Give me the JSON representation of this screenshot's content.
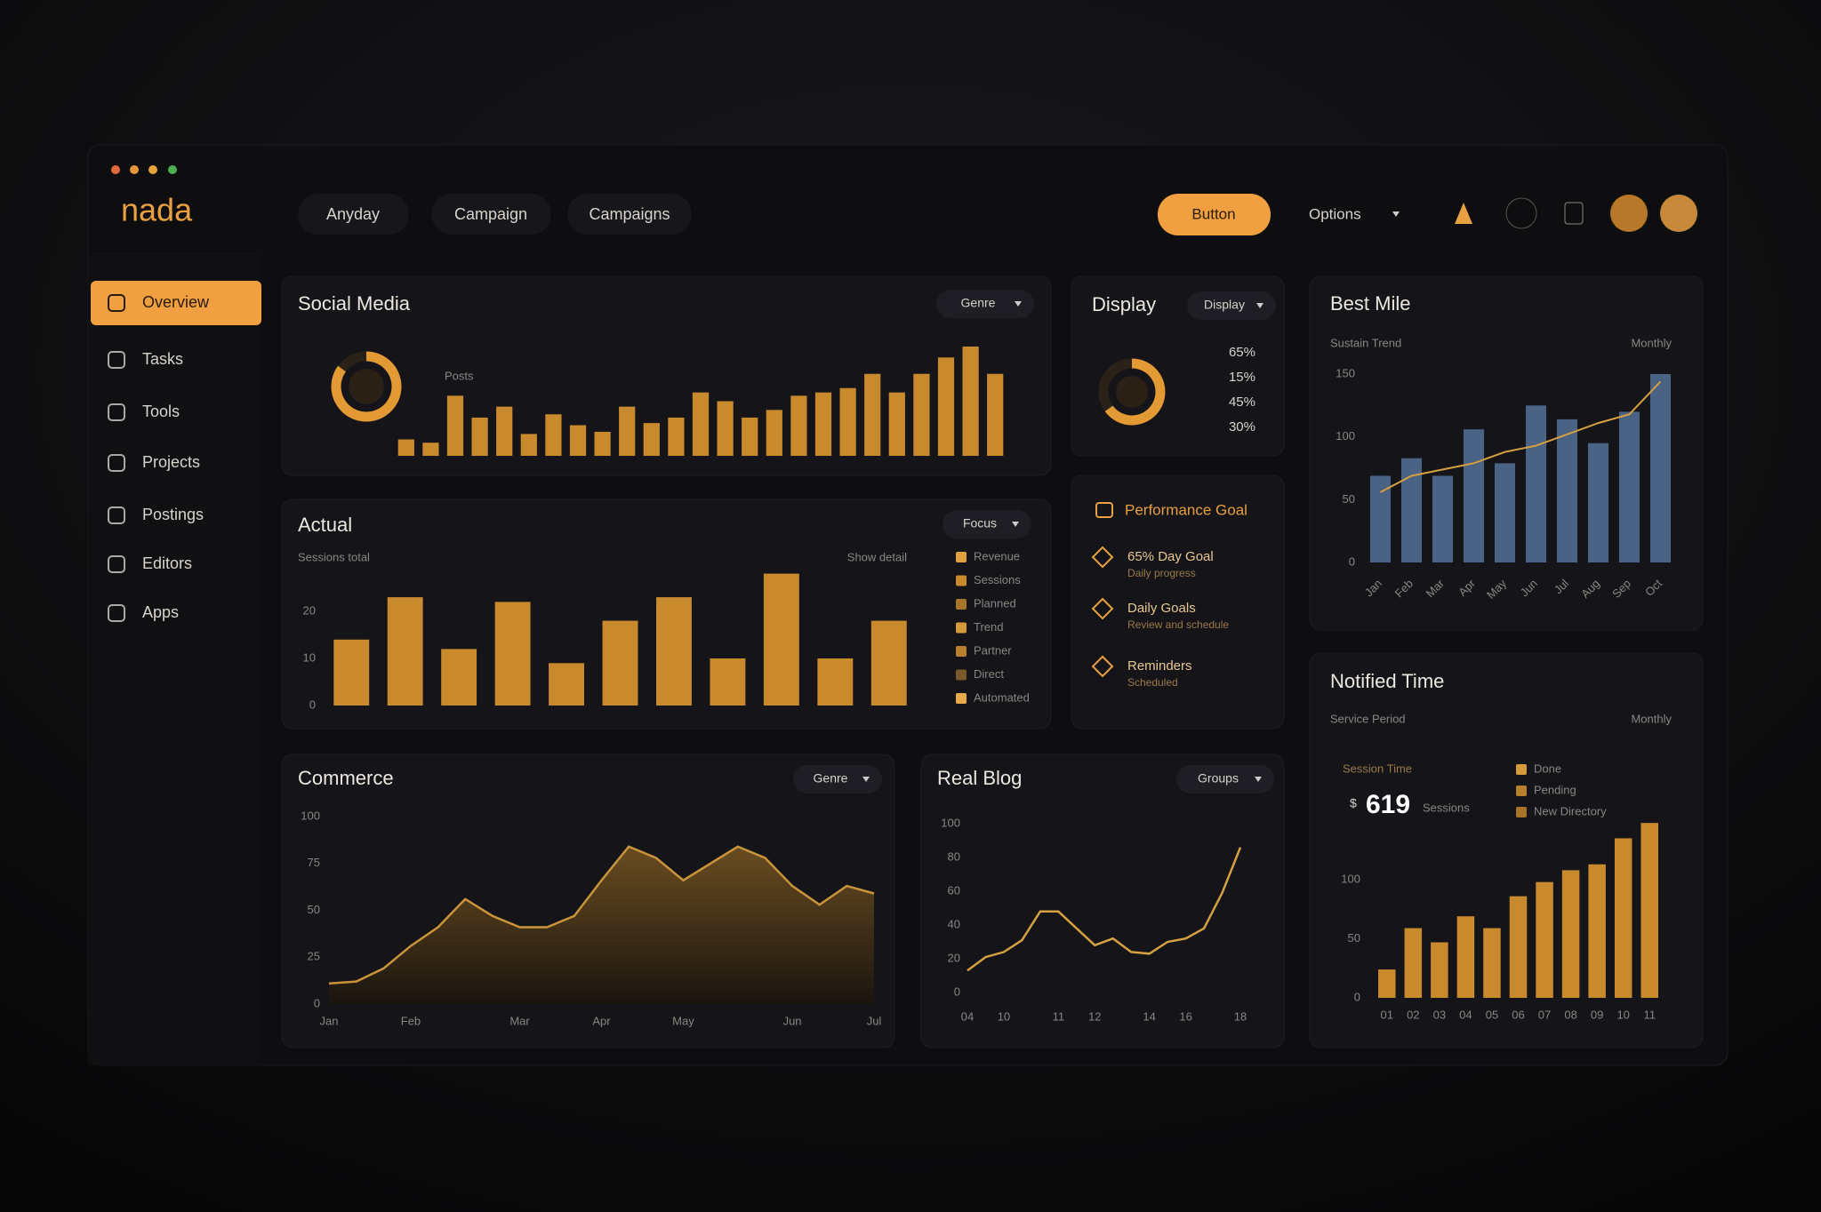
{
  "header": {
    "logo": "nada",
    "nav": [
      "Anyday",
      "Campaign",
      "Campaigns"
    ],
    "button": "Button",
    "dropdown": "Options"
  },
  "sidebar": {
    "items": [
      "Overview",
      "Tasks",
      "Tools",
      "Projects",
      "Postings",
      "Editors",
      "Apps"
    ]
  },
  "goals": {
    "title": "Performance Goal",
    "items": [
      {
        "title": "65% Day Goal",
        "subtitle": "Daily progress"
      },
      {
        "title": "Daily Goals",
        "subtitle": "Review and schedule"
      },
      {
        "title": "Reminders",
        "subtitle": "Scheduled"
      }
    ]
  },
  "chart_data": [
    {
      "type": "bar",
      "title": "Social Media",
      "button": "Genre",
      "label": "Posts",
      "progress": 85,
      "color": "#c98a2e",
      "ylim": [
        0,
        100
      ],
      "values": [
        15,
        12,
        55,
        35,
        45,
        20,
        38,
        28,
        22,
        45,
        30,
        35,
        58,
        50,
        35,
        42,
        55,
        58,
        62,
        75,
        58,
        75,
        90,
        100,
        75
      ]
    },
    {
      "type": "donut",
      "title": "Display",
      "button": "Display",
      "value": 65,
      "color": "#e39a35",
      "labels": [
        "65%",
        "15%",
        "45%",
        "30%"
      ]
    },
    {
      "type": "bar_line",
      "title": "Best Mile",
      "subtitle": "Sustain Trend",
      "dropdown": "Monthly",
      "ylim": [
        0,
        150
      ],
      "yticks": [
        0,
        50,
        100,
        150
      ],
      "categories": [
        "Jan",
        "Feb",
        "Mar",
        "Apr",
        "May",
        "Jun",
        "Jul",
        "Aug",
        "Sep",
        "Oct"
      ],
      "series": [
        {
          "color": "#4a6284",
          "values": [
            69,
            83,
            69,
            106,
            79,
            125,
            114,
            95,
            120,
            150
          ]
        },
        {
          "color": "#d4a040",
          "values": [
            56,
            69,
            74,
            79,
            88,
            93,
            102,
            111,
            118,
            144
          ]
        }
      ]
    },
    {
      "type": "bar",
      "title": "Actual",
      "button": "Focus",
      "subtitle": "Sessions total",
      "note": "Show detail",
      "color": "#c98a2e",
      "ylim": [
        0,
        30
      ],
      "yticks": [
        0,
        10,
        20
      ],
      "values": [
        14,
        23,
        12,
        22,
        9,
        18,
        23,
        10,
        28,
        10,
        18
      ],
      "legend": [
        {
          "name": "Revenue",
          "color": "#e0a040"
        },
        {
          "name": "Sessions",
          "color": "#c98a2e"
        },
        {
          "name": "Planned",
          "color": "#a87428"
        },
        {
          "name": "Trend",
          "color": "#d49a3a"
        },
        {
          "name": "Partner",
          "color": "#b8802c"
        },
        {
          "name": "Direct",
          "color": "#7a5a2a"
        },
        {
          "name": "Automated",
          "color": "#e8aa48"
        }
      ]
    },
    {
      "type": "bar",
      "title": "Notified Time",
      "subtitle": "Service Period",
      "dropdown": "Monthly",
      "stat_label": "Session Time",
      "stat_prefix": "$",
      "stat_value": 619,
      "stat_unit": "Sessions",
      "color": "#c98a2e",
      "ylim": [
        0,
        200
      ],
      "yticks": [
        0,
        50,
        100
      ],
      "categories": [
        "01",
        "02",
        "03",
        "04",
        "05",
        "06",
        "07",
        "08",
        "09",
        "10",
        "11"
      ],
      "values": [
        24,
        59,
        47,
        69,
        59,
        86,
        98,
        108,
        113,
        135,
        148
      ],
      "legend": [
        {
          "name": "Done",
          "color": "#d49a3a"
        },
        {
          "name": "Pending",
          "color": "#b8802c"
        },
        {
          "name": "New Directory",
          "color": "#a87428"
        }
      ]
    },
    {
      "type": "area",
      "title": "Commerce",
      "button": "Genre",
      "color": "#c9943a",
      "ylim": [
        0,
        100
      ],
      "yticks": [
        0,
        25,
        50,
        75,
        100
      ],
      "categories": [
        "Jan",
        null,
        null,
        "Feb",
        null,
        null,
        null,
        "Mar",
        null,
        null,
        "Apr",
        null,
        null,
        "May",
        null,
        null,
        null,
        "Jun",
        null,
        null,
        "Jul"
      ],
      "values": [
        11,
        12,
        19,
        31,
        41,
        56,
        47,
        41,
        41,
        47,
        66,
        84,
        78,
        66,
        75,
        84,
        78,
        63,
        53,
        63,
        59
      ]
    },
    {
      "type": "line",
      "title": "Real Blog",
      "button": "Groups",
      "color": "#d4a040",
      "ylim": [
        0,
        100
      ],
      "yticks": [
        0,
        20,
        40,
        60,
        80,
        100
      ],
      "categories": [
        "04",
        null,
        "10",
        null,
        null,
        "11",
        null,
        "12",
        null,
        null,
        "14",
        null,
        "16",
        null,
        null,
        "18"
      ],
      "values": [
        13,
        21,
        24,
        31,
        48,
        48,
        38,
        28,
        32,
        24,
        23,
        30,
        32,
        38,
        59,
        86
      ]
    }
  ]
}
